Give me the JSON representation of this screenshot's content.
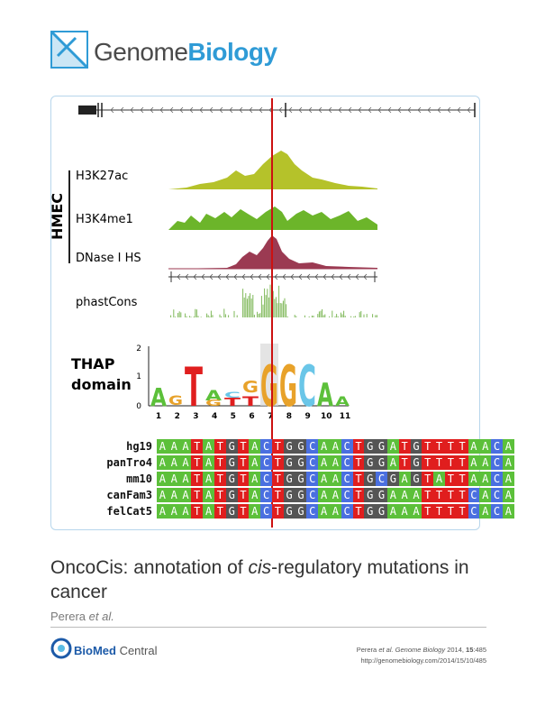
{
  "journal": {
    "name_part1": "Genome",
    "name_part2": "Biology"
  },
  "figure": {
    "cell_type_label": "HMEC",
    "tracks": [
      "H3K27ac",
      "H3K4me1",
      "DNase I HS",
      "phastCons"
    ],
    "motif_label_line1": "THAP",
    "motif_label_line2": "domain",
    "motif_yticks": [
      "2",
      "1",
      "0"
    ],
    "motif_positions": [
      "1",
      "2",
      "3",
      "4",
      "5",
      "6",
      "7",
      "8",
      "9",
      "10",
      "11"
    ],
    "alignment": [
      {
        "species": "hg19",
        "sequence": "AAATATGTACTGGCAACTGGATGTTTTAACA"
      },
      {
        "species": "panTro4",
        "sequence": "AAATATGTACTGGCAACTGGATGTTTTAACA"
      },
      {
        "species": "mm10",
        "sequence": "AAATATGTACTGGCAACTGCGAGTATTAACA"
      },
      {
        "species": "canFam3",
        "sequence": "AAATATGTACTGGCAACTGGAAATTTTCACA"
      },
      {
        "species": "felCat5",
        "sequence": "AAATATGTACTGGCAACTGGAAATTTTCACA"
      }
    ],
    "colors": {
      "A": "#5cc03a",
      "T": "#e01e1e",
      "G": "#555555",
      "C": "#4a6fe0",
      "marker": "#cc1111",
      "h3k27ac": "#b5c22a",
      "h3k4me1": "#6cb52a",
      "dnase": "#9b3a52",
      "phastcons": "#7fb85a"
    }
  },
  "article": {
    "title_part1": "OncoCis: annotation of ",
    "title_italic": "cis",
    "title_part2": "-regulatory mutations in cancer",
    "authors": "Perera",
    "authors_etal": "et al."
  },
  "footer": {
    "publisher_part1": "BioMed",
    "publisher_part2": " Central",
    "citation_line1_prefix": "Perera ",
    "citation_etal": "et al. Genome Biology",
    "citation_line1_suffix": " 2014, ",
    "citation_volume": "15",
    "citation_pages": ":485",
    "citation_url": "http://genomebiology.com/2014/15/10/485"
  }
}
